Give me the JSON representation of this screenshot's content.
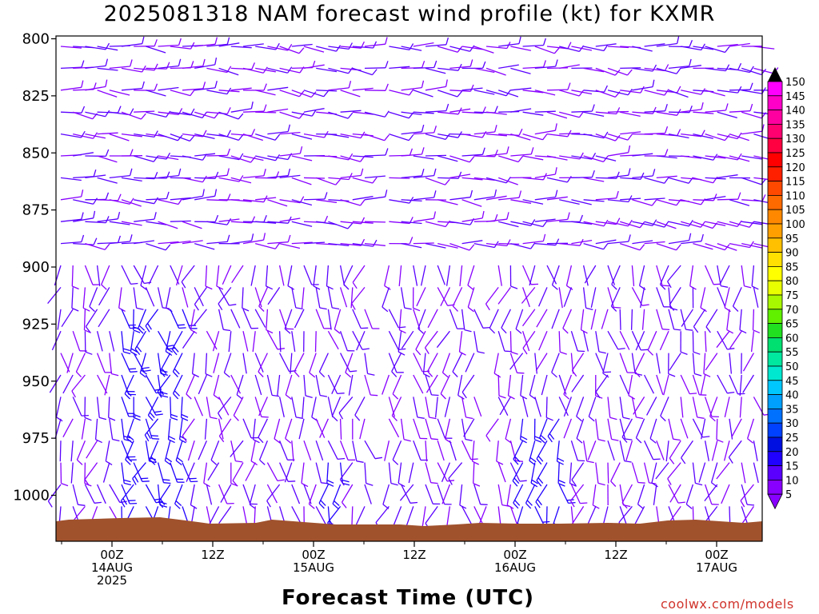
{
  "title": "2025081318 NAM forecast wind profile (kt) for KXMR",
  "xlabel": "Forecast Time (UTC)",
  "credit": "coolwx.com/models",
  "chart_data": {
    "type": "wind_barb_profile",
    "title": "2025081318 NAM forecast wind profile (kt) for KXMR",
    "xlabel": "Forecast Time (UTC)",
    "ylabel": "",
    "y_axis": {
      "units": "hPa",
      "inverted": true,
      "range": [
        800,
        1020
      ],
      "ticks": [
        800,
        825,
        850,
        875,
        900,
        925,
        950,
        975,
        1000
      ]
    },
    "x_axis": {
      "range_hours": [
        -6,
        64
      ],
      "ticks": [
        {
          "hour": 6,
          "label": [
            "00Z",
            "14AUG",
            "2025"
          ]
        },
        {
          "hour": 18,
          "label": [
            "12Z"
          ]
        },
        {
          "hour": 30,
          "label": [
            "00Z",
            "15AUG"
          ]
        },
        {
          "hour": 42,
          "label": [
            "12Z"
          ]
        },
        {
          "hour": 54,
          "label": [
            "00Z",
            "16AUG"
          ]
        },
        {
          "hour": 66,
          "label": [
            "12Z"
          ]
        },
        {
          "hour": 78,
          "label": [
            "00Z",
            "17AUG"
          ]
        }
      ]
    },
    "colorbar": {
      "levels": [
        5,
        10,
        15,
        20,
        25,
        30,
        35,
        40,
        45,
        50,
        55,
        60,
        65,
        70,
        75,
        80,
        85,
        90,
        95,
        100,
        105,
        110,
        115,
        120,
        125,
        130,
        135,
        140,
        145,
        150
      ],
      "colors": [
        "#8800ff",
        "#5a00ff",
        "#2000ff",
        "#0010e0",
        "#0040ff",
        "#0070ff",
        "#00a0ff",
        "#00c8ff",
        "#00e8d0",
        "#00e8a0",
        "#00e070",
        "#20e020",
        "#60f000",
        "#a8f800",
        "#e8ff00",
        "#ffff00",
        "#ffe000",
        "#ffc000",
        "#ffa000",
        "#ff8800",
        "#ff6a00",
        "#ff4800",
        "#ff2000",
        "#ff0000",
        "#ff0040",
        "#ff0070",
        "#ff00a0",
        "#ff00c8",
        "#ff00ff",
        "#ff00ff"
      ]
    },
    "terrain_color": "#a0522d",
    "barb_colors": {
      "calm": "#8800ff",
      "light": "#5a00ff",
      "moderate": "#2000ff"
    }
  }
}
